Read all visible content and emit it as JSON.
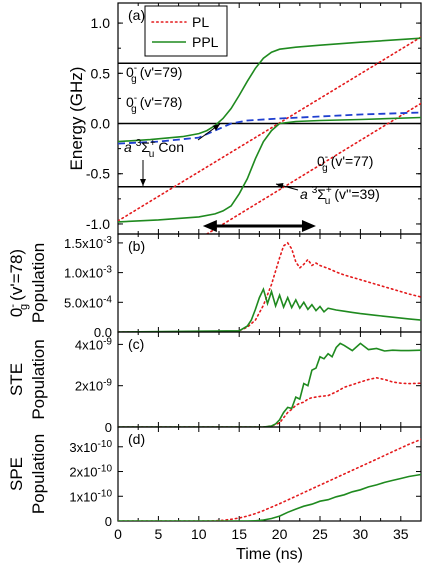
{
  "chart_data": [
    {
      "type": "line",
      "panel_label": "(a)",
      "ylabel": "Energy (GHz)",
      "xlim": [
        0,
        37.5
      ],
      "ylim": [
        -1.1,
        1.2
      ],
      "yticks": [
        "1.0",
        "0.5",
        "0.0",
        "-0.5",
        "-1.0"
      ],
      "ytick_values": [
        1.0,
        0.5,
        0.0,
        -0.5,
        -1.0
      ],
      "legend": {
        "position": "top-left",
        "entries": [
          {
            "label": "PL",
            "color": "#e41a1c",
            "style": "dotted"
          },
          {
            "label": "PPL",
            "color": "#1f8a1f",
            "style": "solid"
          }
        ]
      },
      "annotations": [
        {
          "text": "0g- (v'=79)",
          "main": "0",
          "sup": "-",
          "sub": "g",
          "tail": "(v'=79)"
        },
        {
          "text": "0g- (v'=78)",
          "main": "0",
          "sup": "-",
          "sub": "g",
          "tail": "(v'=78)"
        },
        {
          "text": "0g- (v'=77)",
          "main": "0",
          "sup": "-",
          "sub": "g",
          "tail": "(v'=77)"
        },
        {
          "text": "a 3Σu+ Con",
          "tail": "Con"
        },
        {
          "text": "a 3Σu+ (v''=39)",
          "tail": "(v''=39)"
        }
      ],
      "horizontal_levels": [
        {
          "name": "0g- (v'=79)",
          "y": 0.6
        },
        {
          "name": "0g- (v'=78)",
          "y": 0.0
        },
        {
          "name": "0g- (v'=77)",
          "y": -0.63
        }
      ],
      "series": [
        {
          "name": "PL",
          "x": [
            0,
            37.5
          ],
          "y": [
            -0.97,
            0.86
          ]
        },
        {
          "name": "PL",
          "x": [
            11,
            37.5
          ],
          "y": [
            -1.1,
            0.2
          ]
        },
        {
          "name": "PPL",
          "x": [
            0,
            4,
            8,
            10,
            11,
            12,
            13,
            14,
            15,
            16,
            17,
            18,
            19,
            20,
            22,
            25,
            30,
            37.5
          ],
          "y": [
            -0.18,
            -0.16,
            -0.13,
            -0.1,
            -0.07,
            -0.02,
            0.05,
            0.15,
            0.28,
            0.42,
            0.55,
            0.65,
            0.71,
            0.74,
            0.76,
            0.78,
            0.81,
            0.85
          ]
        },
        {
          "name": "PPL",
          "x": [
            0,
            5,
            10,
            12,
            13,
            14,
            15,
            16,
            17,
            18,
            19,
            20,
            22,
            25,
            30,
            37.5
          ],
          "y": [
            -0.98,
            -0.96,
            -0.93,
            -0.9,
            -0.87,
            -0.82,
            -0.7,
            -0.55,
            -0.35,
            -0.18,
            -0.07,
            0.0,
            0.02,
            0.03,
            0.04,
            0.06
          ]
        },
        {
          "name": "a 3Σu+ Con",
          "x": [
            0,
            5,
            10,
            12,
            14,
            16,
            20,
            25,
            30,
            37.5
          ],
          "y": [
            -0.2,
            -0.18,
            -0.14,
            -0.07,
            0.0,
            0.03,
            0.05,
            0.07,
            0.09,
            0.11
          ]
        }
      ],
      "double_arrow": {
        "x": [
          10.5,
          24.5
        ],
        "y": -1.02
      }
    },
    {
      "type": "line",
      "panel_label": "(b)",
      "ylabel_lines": [
        "0g- (v'=78)",
        "Population"
      ],
      "xlim": [
        0,
        37.5
      ],
      "ylim": [
        0,
        0.00165
      ],
      "yticks": [
        "1.5x10-3",
        "1.0x10-3",
        "5.0x10-4",
        "0.0"
      ],
      "ytick_values": [
        0.0015,
        0.001,
        0.0005,
        0.0
      ],
      "series": [
        {
          "name": "PL",
          "x": [
            0,
            14,
            15,
            16,
            17,
            18,
            19,
            20,
            20.5,
            21,
            21.5,
            22,
            22.5,
            23,
            23.5,
            24,
            24.5,
            25,
            26,
            27,
            28,
            30,
            32,
            34,
            36,
            37.5
          ],
          "y": [
            0,
            0,
            2e-05,
            8e-05,
            0.0002,
            0.00045,
            0.0008,
            0.00125,
            0.00145,
            0.0015,
            0.0014,
            0.00118,
            0.00108,
            0.00114,
            0.00122,
            0.00112,
            0.00116,
            0.00112,
            0.00107,
            0.00101,
            0.00096,
            0.00088,
            0.0008,
            0.00072,
            0.00064,
            0.00059
          ]
        },
        {
          "name": "PPL",
          "x": [
            0,
            15,
            16,
            16.5,
            17,
            17.5,
            18,
            18.5,
            19,
            19.5,
            20,
            20.5,
            21,
            21.5,
            22,
            22.5,
            23,
            23.5,
            24,
            24.5,
            25,
            25.5,
            26,
            27,
            28,
            29,
            30,
            32,
            34,
            36,
            37.5
          ],
          "y": [
            0,
            2e-05,
            0.0001,
            0.0002,
            0.00038,
            0.00058,
            0.00072,
            0.00048,
            0.00068,
            0.00044,
            0.00062,
            0.00042,
            0.00058,
            0.00041,
            0.00054,
            0.0004,
            0.0005,
            0.00038,
            0.00046,
            0.00036,
            0.00043,
            0.00034,
            0.0004,
            0.00037,
            0.00035,
            0.00033,
            0.00031,
            0.00028,
            0.00025,
            0.00022,
            0.0002
          ]
        }
      ]
    },
    {
      "type": "line",
      "panel_label": "(c)",
      "ylabel_lines": [
        "STE",
        "Population"
      ],
      "xlim": [
        0,
        37.5
      ],
      "ylim": [
        0,
        4.6e-09
      ],
      "yticks": [
        "4x10-9",
        "2x10-9",
        "0"
      ],
      "ytick_values": [
        4e-09,
        2e-09,
        0
      ],
      "series": [
        {
          "name": "PL",
          "x": [
            0,
            18,
            19,
            20,
            20.5,
            21,
            21.5,
            22,
            22.5,
            23,
            23.5,
            24,
            25,
            26,
            27,
            28,
            29,
            30,
            31,
            32,
            33,
            34,
            35,
            36,
            37.5
          ],
          "y": [
            0,
            0,
            5e-11,
            2e-10,
            4.5e-10,
            7e-10,
            8.5e-10,
            1.05e-09,
            1.15e-09,
            1.2e-09,
            1.35e-09,
            1.42e-09,
            1.48e-09,
            1.52e-09,
            1.7e-09,
            1.92e-09,
            2.05e-09,
            2.18e-09,
            2.3e-09,
            2.38e-09,
            2.3e-09,
            2.18e-09,
            2.12e-09,
            2.1e-09,
            2.12e-09
          ]
        },
        {
          "name": "PPL",
          "x": [
            0,
            18,
            19,
            19.5,
            20,
            20.5,
            21,
            21.5,
            22,
            22.5,
            23,
            23.5,
            24,
            24.5,
            25,
            25.5,
            26,
            26.5,
            27,
            27.5,
            28,
            29,
            30,
            31,
            32,
            33,
            34,
            35,
            36,
            37.5
          ],
          "y": [
            0,
            0,
            5e-11,
            1.5e-10,
            3.5e-10,
            7e-10,
            9.5e-10,
            9e-10,
            1.45e-09,
            1.35e-09,
            2.1e-09,
            2e-09,
            2.75e-09,
            2.85e-09,
            3.4e-09,
            3.3e-09,
            3.55e-09,
            3.4e-09,
            3.85e-09,
            4.05e-09,
            3.95e-09,
            3.7e-09,
            4.05e-09,
            3.75e-09,
            3.8e-09,
            3.68e-09,
            3.72e-09,
            3.7e-09,
            3.7e-09,
            3.72e-09
          ]
        }
      ]
    },
    {
      "type": "line",
      "panel_label": "(d)",
      "ylabel_lines": [
        "SPE",
        "Population"
      ],
      "xlabel": "Time (ns)",
      "xlim": [
        0,
        37.5
      ],
      "ylim": [
        0,
        3.8e-10
      ],
      "xticks": [
        "0",
        "5",
        "10",
        "15",
        "20",
        "25",
        "30",
        "35"
      ],
      "xtick_values": [
        0,
        5,
        10,
        15,
        20,
        25,
        30,
        35
      ],
      "yticks": [
        "3x10-10",
        "2x10-10",
        "1x10-10",
        "0"
      ],
      "ytick_values": [
        3e-10,
        2e-10,
        1e-10,
        0
      ],
      "series": [
        {
          "name": "PL",
          "x": [
            0,
            10,
            11,
            12,
            13,
            14,
            15,
            16,
            17,
            18,
            20,
            22,
            24,
            26,
            28,
            30,
            32,
            34,
            36,
            37.5
          ],
          "y": [
            0,
            0,
            2e-13,
            1e-12,
            3e-12,
            7e-12,
            1.2e-11,
            2e-11,
            3e-11,
            4.2e-11,
            7e-11,
            1e-10,
            1.3e-10,
            1.6e-10,
            1.9e-10,
            2.2e-10,
            2.5e-10,
            2.8e-10,
            3.1e-10,
            3.3e-10
          ]
        },
        {
          "name": "PPL",
          "x": [
            0,
            16,
            17,
            18,
            19,
            20,
            21,
            22,
            23,
            24,
            25,
            26,
            27,
            28,
            29,
            30,
            31,
            32,
            33,
            34,
            35,
            36,
            37.5
          ],
          "y": [
            0,
            0,
            1e-12,
            4e-12,
            1e-11,
            2e-11,
            3.5e-11,
            4.8e-11,
            6e-11,
            6.8e-11,
            8e-11,
            8.6e-11,
            9.8e-11,
            1.06e-10,
            1.18e-10,
            1.26e-10,
            1.38e-10,
            1.46e-10,
            1.56e-10,
            1.64e-10,
            1.72e-10,
            1.8e-10,
            1.88e-10
          ]
        }
      ]
    }
  ]
}
